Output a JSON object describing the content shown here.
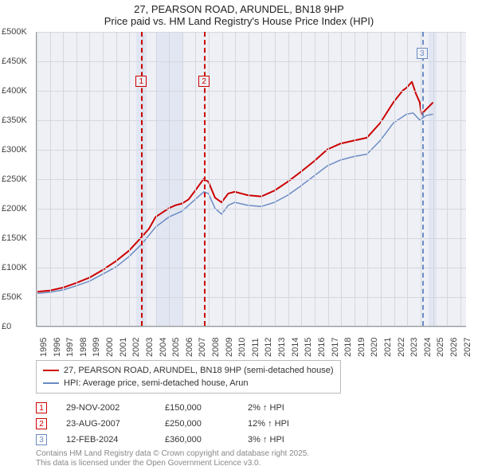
{
  "title": {
    "line1": "27, PEARSON ROAD, ARUNDEL, BN18 9HP",
    "line2": "Price paid vs. HM Land Registry's House Price Index (HPI)"
  },
  "chart": {
    "type": "line",
    "background_color": "#eef0f5",
    "grid_color": "#d4d7de",
    "x_axis": {
      "min": 1995,
      "max": 2027.5,
      "ticks": [
        1995,
        1996,
        1997,
        1998,
        1999,
        2000,
        2001,
        2002,
        2003,
        2004,
        2005,
        2006,
        2007,
        2008,
        2009,
        2010,
        2011,
        2012,
        2013,
        2014,
        2015,
        2016,
        2017,
        2018,
        2019,
        2020,
        2021,
        2022,
        2023,
        2024,
        2025,
        2026,
        2027
      ]
    },
    "y_axis": {
      "min": 0,
      "max": 500000,
      "ticks": [
        0,
        50000,
        100000,
        150000,
        200000,
        250000,
        300000,
        350000,
        400000,
        450000,
        500000
      ],
      "tick_labels": [
        "£0",
        "£50K",
        "£100K",
        "£150K",
        "£200K",
        "£250K",
        "£300K",
        "£350K",
        "£400K",
        "£450K",
        "£500K"
      ]
    },
    "series": [
      {
        "name": "27, PEARSON ROAD, ARUNDEL, BN18 9HP (semi-detached house)",
        "color": "#cc0000",
        "line_width": 2,
        "data": [
          [
            1995,
            58000
          ],
          [
            1996,
            60000
          ],
          [
            1997,
            65000
          ],
          [
            1998,
            73000
          ],
          [
            1999,
            82000
          ],
          [
            2000,
            95000
          ],
          [
            2001,
            110000
          ],
          [
            2002,
            128000
          ],
          [
            2002.9,
            150000
          ],
          [
            2003.5,
            165000
          ],
          [
            2004,
            185000
          ],
          [
            2005,
            200000
          ],
          [
            2005.5,
            205000
          ],
          [
            2006,
            208000
          ],
          [
            2006.5,
            215000
          ],
          [
            2007,
            230000
          ],
          [
            2007.65,
            250000
          ],
          [
            2008,
            245000
          ],
          [
            2008.5,
            218000
          ],
          [
            2009,
            210000
          ],
          [
            2009.5,
            225000
          ],
          [
            2010,
            228000
          ],
          [
            2010.5,
            225000
          ],
          [
            2011,
            222000
          ],
          [
            2012,
            220000
          ],
          [
            2012.5,
            225000
          ],
          [
            2013,
            230000
          ],
          [
            2014,
            245000
          ],
          [
            2015,
            262000
          ],
          [
            2016,
            280000
          ],
          [
            2017,
            300000
          ],
          [
            2018,
            310000
          ],
          [
            2019,
            315000
          ],
          [
            2020,
            320000
          ],
          [
            2021,
            345000
          ],
          [
            2022,
            380000
          ],
          [
            2022.7,
            400000
          ],
          [
            2023,
            405000
          ],
          [
            2023.4,
            415000
          ],
          [
            2023.7,
            395000
          ],
          [
            2024,
            380000
          ],
          [
            2024.12,
            360000
          ],
          [
            2025,
            380000
          ]
        ]
      },
      {
        "name": "HPI: Average price, semi-detached house, Arun",
        "color": "#6b8bc4",
        "line_width": 1.5,
        "data": [
          [
            1995,
            55000
          ],
          [
            1996,
            57000
          ],
          [
            1997,
            61000
          ],
          [
            1998,
            68000
          ],
          [
            1999,
            76000
          ],
          [
            2000,
            88000
          ],
          [
            2001,
            100000
          ],
          [
            2002,
            118000
          ],
          [
            2003,
            140000
          ],
          [
            2004,
            168000
          ],
          [
            2005,
            185000
          ],
          [
            2006,
            195000
          ],
          [
            2007,
            215000
          ],
          [
            2007.65,
            228000
          ],
          [
            2008,
            225000
          ],
          [
            2008.5,
            200000
          ],
          [
            2009,
            190000
          ],
          [
            2009.5,
            205000
          ],
          [
            2010,
            210000
          ],
          [
            2011,
            205000
          ],
          [
            2012,
            203000
          ],
          [
            2013,
            210000
          ],
          [
            2014,
            222000
          ],
          [
            2015,
            238000
          ],
          [
            2016,
            255000
          ],
          [
            2017,
            272000
          ],
          [
            2018,
            282000
          ],
          [
            2019,
            288000
          ],
          [
            2020,
            292000
          ],
          [
            2021,
            315000
          ],
          [
            2022,
            345000
          ],
          [
            2023,
            360000
          ],
          [
            2023.5,
            362000
          ],
          [
            2024,
            350000
          ],
          [
            2024.5,
            358000
          ],
          [
            2025,
            360000
          ]
        ]
      }
    ],
    "markers": [
      {
        "id": "1",
        "x": 2002.9,
        "color": "#cc0000",
        "band_start": 2002.5,
        "band_end": 2003.3
      },
      {
        "id": "2",
        "x": 2007.65,
        "color": "#cc0000",
        "band_start": 2004.0,
        "band_end": 2006.0
      },
      {
        "id": "3",
        "x": 2024.12,
        "color": "#6b8bc4",
        "band_start": 2024.6,
        "band_end": 2025.2
      }
    ]
  },
  "legend": {
    "items": [
      {
        "color": "#cc0000",
        "label": "27, PEARSON ROAD, ARUNDEL, BN18 9HP (semi-detached house)"
      },
      {
        "color": "#6b8bc4",
        "label": "HPI: Average price, semi-detached house, Arun"
      }
    ]
  },
  "events": [
    {
      "id": "1",
      "color": "#cc0000",
      "date": "29-NOV-2002",
      "price": "£150,000",
      "hpi": "2% ↑ HPI"
    },
    {
      "id": "2",
      "color": "#cc0000",
      "date": "23-AUG-2007",
      "price": "£250,000",
      "hpi": "12% ↑ HPI"
    },
    {
      "id": "3",
      "color": "#6b8bc4",
      "date": "12-FEB-2024",
      "price": "£360,000",
      "hpi": "3% ↑ HPI"
    }
  ],
  "footnote": {
    "line1": "Contains HM Land Registry data © Crown copyright and database right 2025.",
    "line2": "This data is licensed under the Open Government Licence v3.0."
  }
}
